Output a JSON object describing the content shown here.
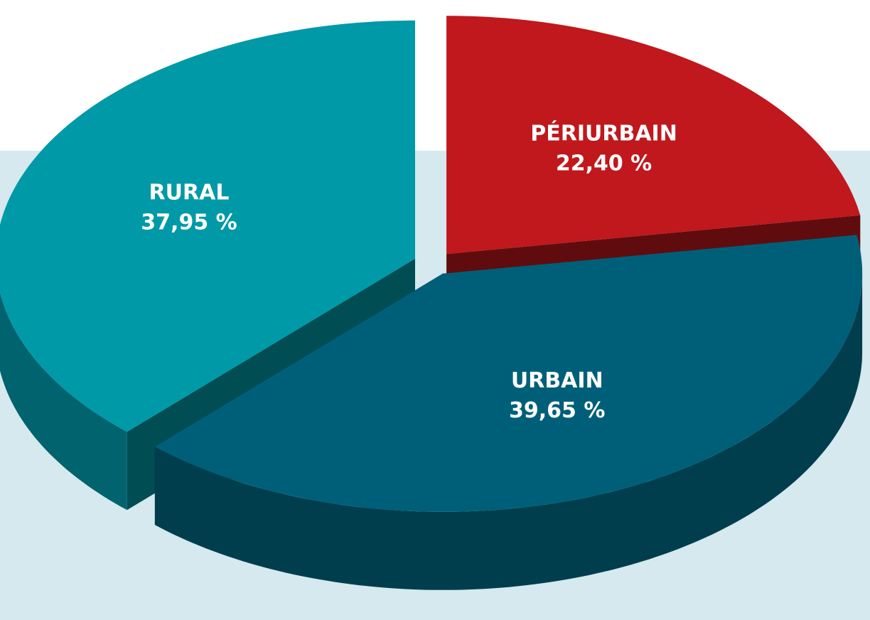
{
  "chart_data": {
    "type": "pie",
    "categories": [
      "PÉRIURBAIN",
      "URBAIN",
      "RURAL"
    ],
    "values": [
      22.4,
      39.65,
      37.95
    ],
    "value_labels": [
      "22,40 %",
      "39,65 %",
      "37,95 %"
    ],
    "colors": [
      "#c0181c",
      "#005f78",
      "#0099a8"
    ]
  }
}
